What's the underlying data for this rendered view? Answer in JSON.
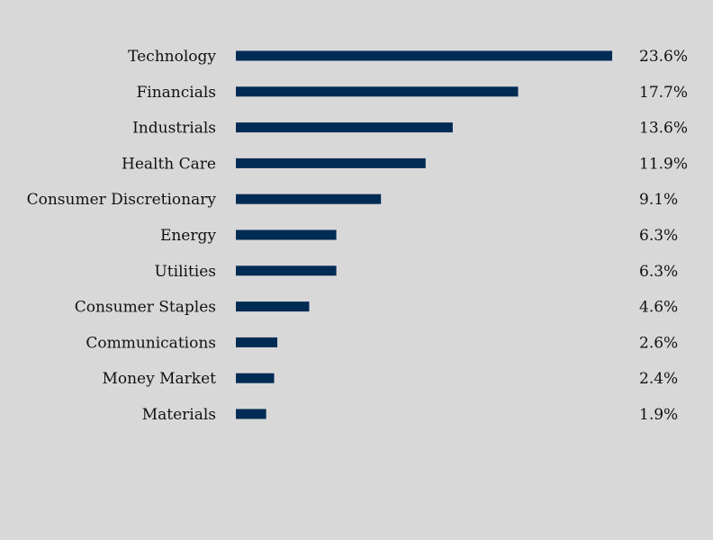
{
  "chart_data": {
    "type": "bar",
    "orientation": "horizontal",
    "categories": [
      "Technology",
      "Financials",
      "Industrials",
      "Health Care",
      "Consumer Discretionary",
      "Energy",
      "Utilities",
      "Consumer Staples",
      "Communications",
      "Money Market",
      "Materials"
    ],
    "values": [
      23.6,
      17.7,
      13.6,
      11.9,
      9.1,
      6.3,
      6.3,
      4.6,
      2.6,
      2.4,
      1.9
    ],
    "value_labels": [
      "23.6%",
      "17.7%",
      "13.6%",
      "11.9%",
      "9.1%",
      "6.3%",
      "6.3%",
      "4.6%",
      "2.6%",
      "2.4%",
      "1.9%"
    ],
    "title": "",
    "xlabel": "",
    "ylabel": "",
    "xlim": [
      0,
      23.6
    ],
    "grid": false,
    "legend": "none",
    "colors": {
      "bar": "#002b54",
      "background": "#d9d8d9",
      "text": "#111111"
    }
  }
}
